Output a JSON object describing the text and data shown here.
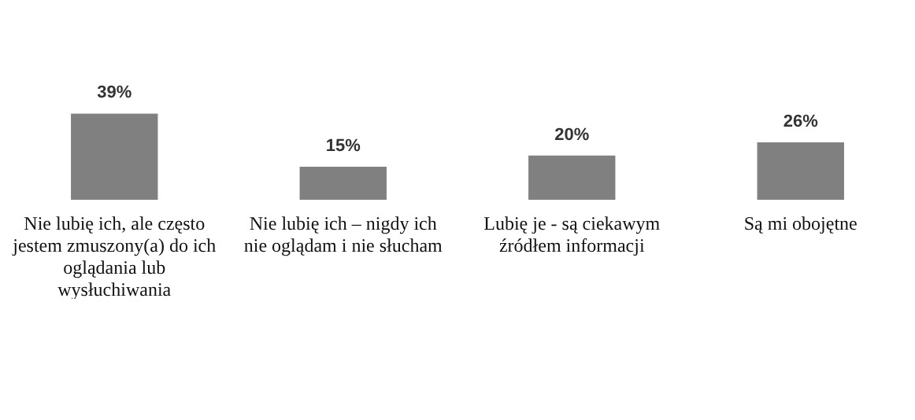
{
  "chart_data": {
    "type": "bar",
    "categories": [
      "Nie lubię ich, ale często jestem zmuszony(a) do ich oglądania lub wysłuchiwania",
      "Nie lubię ich – nigdy ich nie oglądam i nie słucham",
      "Lubię je - są ciekawym źródłem informacji",
      "Są mi obojętne"
    ],
    "values": [
      39,
      15,
      20,
      26
    ],
    "color": "#808080",
    "value_labels": [
      "39%",
      "15%",
      "20%",
      "26%"
    ]
  }
}
